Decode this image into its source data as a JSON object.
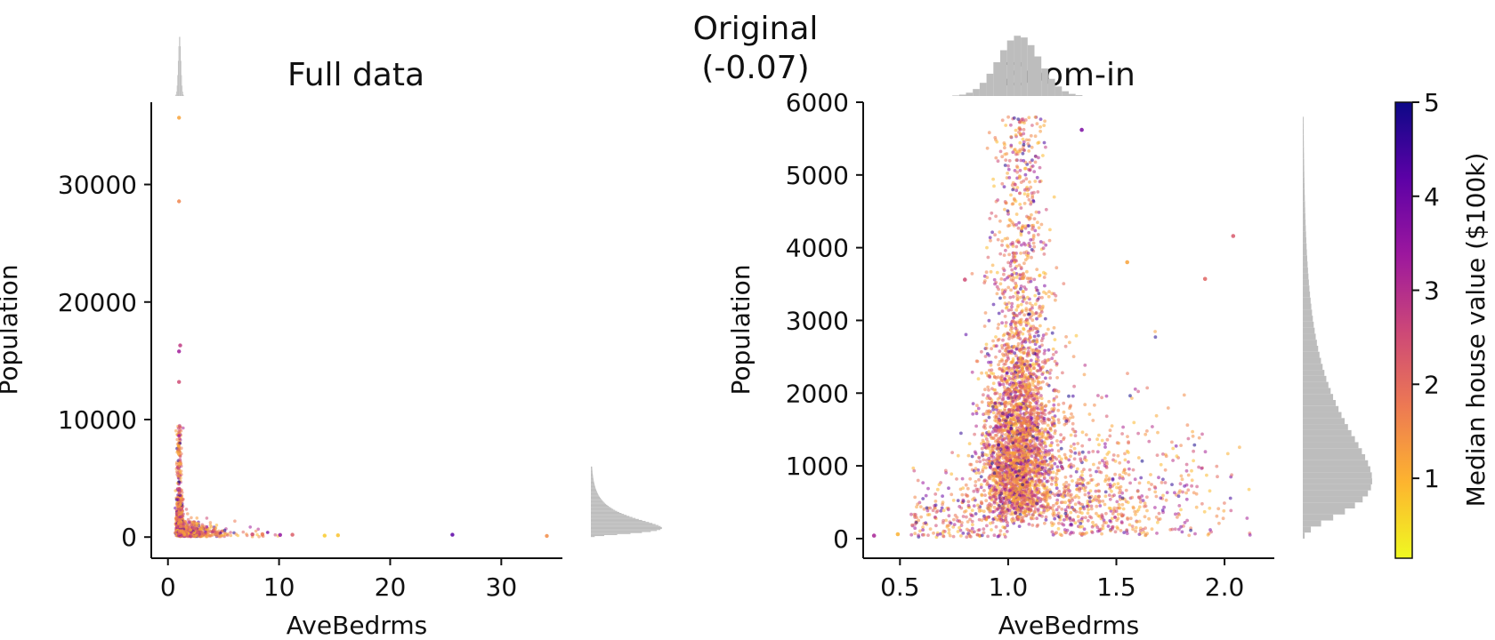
{
  "suptitle": [
    "Original",
    "(-0.07)"
  ],
  "colorbar": {
    "label": "Median house value ($100k)",
    "range": [
      0.15,
      5.0
    ],
    "ticks": [
      1,
      2,
      3,
      4,
      5
    ],
    "colormap": "plasma_r",
    "colors": [
      "#f0f921",
      "#fdb42f",
      "#ed7953",
      "#cc4778",
      "#9c179e",
      "#5c01a6",
      "#0d0887"
    ]
  },
  "hist_color": "#bdbdbd",
  "chart_data": [
    {
      "type": "scatter",
      "panel": "left",
      "title": "Full data",
      "xlabel": "AveBedrms",
      "ylabel": "Population",
      "xlim": [
        -1.5,
        35.5
      ],
      "ylim": [
        -1800,
        37000
      ],
      "xticks": [
        0,
        10,
        20,
        30
      ],
      "yticks": [
        0,
        10000,
        20000,
        30000
      ],
      "color_by": "Median house value ($100k)",
      "notable_points": [
        {
          "x": 1.0,
          "y": 35682,
          "c": 1.2
        },
        {
          "x": 1.0,
          "y": 28566,
          "c": 1.6
        },
        {
          "x": 1.1,
          "y": 16305,
          "c": 2.8
        },
        {
          "x": 1.0,
          "y": 15800,
          "c": 3.3
        },
        {
          "x": 1.0,
          "y": 13200,
          "c": 2.5
        },
        {
          "x": 25.6,
          "y": 200,
          "c": 4.2
        },
        {
          "x": 34.1,
          "y": 100,
          "c": 1.5
        },
        {
          "x": 15.3,
          "y": 150,
          "c": 0.8
        },
        {
          "x": 14.1,
          "y": 120,
          "c": 0.7
        },
        {
          "x": 11.2,
          "y": 200,
          "c": 2.2
        },
        {
          "x": 10.1,
          "y": 180,
          "c": 3.5
        },
        {
          "x": 8.5,
          "y": 250,
          "c": 1.8
        },
        {
          "x": 7.6,
          "y": 230,
          "c": 2.6
        }
      ],
      "distribution": "dense cluster at AveBedrms≈1, Population 0–3000, tail up to x≈11"
    },
    {
      "type": "scatter",
      "panel": "right",
      "title": "Zoom-in",
      "xlabel": "AveBedrms",
      "ylabel": "Population",
      "xlim": [
        0.33,
        2.23
      ],
      "ylim": [
        -270,
        6000
      ],
      "xticks": [
        0.5,
        1.0,
        1.5,
        2.0
      ],
      "yticks": [
        0,
        1000,
        2000,
        3000,
        4000,
        5000,
        6000
      ],
      "color_by": "Median house value ($100k)",
      "notable_points": [
        {
          "x": 1.34,
          "y": 5620,
          "c": 3.8
        },
        {
          "x": 2.04,
          "y": 4160,
          "c": 2.3
        },
        {
          "x": 1.91,
          "y": 3570,
          "c": 2.1
        },
        {
          "x": 0.8,
          "y": 3560,
          "c": 2.5
        },
        {
          "x": 1.55,
          "y": 3800,
          "c": 1.2
        },
        {
          "x": 0.38,
          "y": 40,
          "c": 3.2
        },
        {
          "x": 0.49,
          "y": 60,
          "c": 1.0
        }
      ],
      "distribution": "dense cluster around AveBedrms 0.9–1.2, Population 0–5800; sparse spread to x≈2.1 below Population≈3000"
    }
  ]
}
